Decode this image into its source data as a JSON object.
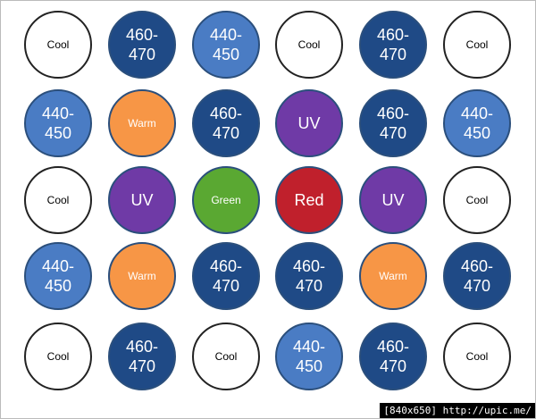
{
  "grid": {
    "rows": [
      [
        {
          "label": "Cool",
          "color": "#ffffff"
        },
        {
          "label": "460-470",
          "color": "#1f4a86"
        },
        {
          "label": "440-450",
          "color": "#4a7cc4"
        },
        {
          "label": "Cool",
          "color": "#ffffff"
        },
        {
          "label": "460-470",
          "color": "#1f4a86"
        },
        {
          "label": "Cool",
          "color": "#ffffff"
        }
      ],
      [
        {
          "label": "440-450",
          "color": "#4a7cc4"
        },
        {
          "label": "Warm",
          "color": "#f79646"
        },
        {
          "label": "460-470",
          "color": "#1f4a86"
        },
        {
          "label": "UV",
          "color": "#6f3aa6"
        },
        {
          "label": "460-470",
          "color": "#1f4a86"
        },
        {
          "label": "440-450",
          "color": "#4a7cc4"
        }
      ],
      [
        {
          "label": "Cool",
          "color": "#ffffff"
        },
        {
          "label": "UV",
          "color": "#6f3aa6"
        },
        {
          "label": "Green",
          "color": "#5aa832"
        },
        {
          "label": "Red",
          "color": "#c0202c"
        },
        {
          "label": "UV",
          "color": "#6f3aa6"
        },
        {
          "label": "Cool",
          "color": "#ffffff"
        }
      ],
      [
        {
          "label": "440-450",
          "color": "#4a7cc4"
        },
        {
          "label": "Warm",
          "color": "#f79646"
        },
        {
          "label": "460-470",
          "color": "#1f4a86"
        },
        {
          "label": "460-470",
          "color": "#1f4a86"
        },
        {
          "label": "Warm",
          "color": "#f79646"
        },
        {
          "label": "460-470",
          "color": "#1f4a86"
        }
      ],
      [
        {
          "label": "Cool",
          "color": "#ffffff"
        },
        {
          "label": "460-470",
          "color": "#1f4a86"
        },
        {
          "label": "Cool",
          "color": "#ffffff"
        },
        {
          "label": "440-450",
          "color": "#4a7cc4"
        },
        {
          "label": "460-470",
          "color": "#1f4a86"
        },
        {
          "label": "Cool",
          "color": "#ffffff"
        }
      ]
    ]
  },
  "footer": "[840x650] http://upic.me/"
}
